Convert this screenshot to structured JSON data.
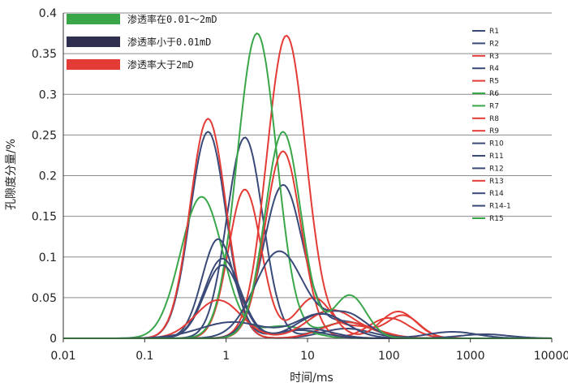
{
  "chart_data": {
    "type": "line",
    "title": "",
    "xlabel": "时间/ms",
    "ylabel": "孔隙度分量/%",
    "xscale": "log",
    "xlim": [
      0.01,
      10000
    ],
    "ylim": [
      0,
      0.4
    ],
    "grid": "horizontal",
    "x_ticks": [
      "0.01",
      "0.1",
      "1",
      "10",
      "100",
      "1000",
      "10000"
    ],
    "y_ticks": [
      "0",
      "0.05",
      "0.1",
      "0.15",
      "0.2",
      "0.25",
      "0.3",
      "0.35",
      "0.4"
    ],
    "group_legend_placement": "top-left",
    "series_legend_placement": "right",
    "groups": [
      {
        "label": "渗透率在0.01～2mD",
        "color": "#3aa64a"
      },
      {
        "label": "渗透率小于0.01mD",
        "color": "#2e2e4e"
      },
      {
        "label": "渗透率大于2mD",
        "color": "#e33b35"
      }
    ],
    "series": [
      {
        "name": "R1",
        "color": "#3a4a78",
        "peaks": [
          {
            "x": 0.6,
            "y": 0.254,
            "w": 0.22
          },
          {
            "x": 30,
            "y": 0.012,
            "w": 0.3
          }
        ]
      },
      {
        "name": "R2",
        "color": "#3a4a78",
        "peaks": [
          {
            "x": 1.7,
            "y": 0.247,
            "w": 0.22
          },
          {
            "x": 30,
            "y": 0.02,
            "w": 0.3
          }
        ]
      },
      {
        "name": "R3",
        "color": "#e33b35",
        "peaks": [
          {
            "x": 5.5,
            "y": 0.372,
            "w": 0.24
          },
          {
            "x": 40,
            "y": 0.015,
            "w": 0.3
          }
        ]
      },
      {
        "name": "R4",
        "color": "#3a4a78",
        "peaks": [
          {
            "x": 5.0,
            "y": 0.188,
            "w": 0.24
          },
          {
            "x": 30,
            "y": 0.02,
            "w": 0.3
          }
        ]
      },
      {
        "name": "R5",
        "color": "#e33b35",
        "peaks": [
          {
            "x": 1.7,
            "y": 0.183,
            "w": 0.2
          },
          {
            "x": 12,
            "y": 0.05,
            "w": 0.22
          },
          {
            "x": 130,
            "y": 0.033,
            "w": 0.22
          }
        ]
      },
      {
        "name": "R6",
        "color": "#3aa64a",
        "peaks": [
          {
            "x": 0.5,
            "y": 0.174,
            "w": 0.26
          },
          {
            "x": 5,
            "y": 0.015,
            "w": 0.3
          }
        ]
      },
      {
        "name": "R7",
        "color": "#3aa64a",
        "peaks": [
          {
            "x": 2.4,
            "y": 0.375,
            "w": 0.24
          },
          {
            "x": 30,
            "y": 0.02,
            "w": 0.3
          }
        ]
      },
      {
        "name": "R8",
        "color": "#e33b35",
        "peaks": [
          {
            "x": 0.6,
            "y": 0.27,
            "w": 0.22
          },
          {
            "x": 30,
            "y": 0.02,
            "w": 0.3
          }
        ]
      },
      {
        "name": "R9",
        "color": "#e33b35",
        "peaks": [
          {
            "x": 5.0,
            "y": 0.23,
            "w": 0.22
          },
          {
            "x": 100,
            "y": 0.025,
            "w": 0.25
          }
        ]
      },
      {
        "name": "R10",
        "color": "#3a4a78",
        "peaks": [
          {
            "x": 0.8,
            "y": 0.122,
            "w": 0.2
          },
          {
            "x": 8,
            "y": 0.01,
            "w": 0.3
          }
        ]
      },
      {
        "name": "R11",
        "color": "#3a4a78",
        "peaks": [
          {
            "x": 0.9,
            "y": 0.098,
            "w": 0.22
          },
          {
            "x": 10,
            "y": 0.012,
            "w": 0.3
          }
        ]
      },
      {
        "name": "R12",
        "color": "#3a4a78",
        "peaks": [
          {
            "x": 0.9,
            "y": 0.09,
            "w": 0.22
          },
          {
            "x": 15,
            "y": 0.03,
            "w": 0.3
          }
        ]
      },
      {
        "name": "R13",
        "color": "#e33b35",
        "peaks": [
          {
            "x": 0.8,
            "y": 0.047,
            "w": 0.28
          },
          {
            "x": 20,
            "y": 0.035,
            "w": 0.3
          },
          {
            "x": 150,
            "y": 0.028,
            "w": 0.2
          }
        ]
      },
      {
        "name": "R14",
        "color": "#3a4a78",
        "peaks": [
          {
            "x": 4.5,
            "y": 0.107,
            "w": 0.3
          },
          {
            "x": 30,
            "y": 0.03,
            "w": 0.25
          },
          {
            "x": 600,
            "y": 0.008,
            "w": 0.3
          }
        ]
      },
      {
        "name": "R14-1",
        "color": "#3a4a78",
        "peaks": [
          {
            "x": 1.2,
            "y": 0.02,
            "w": 0.4
          },
          {
            "x": 15,
            "y": 0.03,
            "w": 0.3
          },
          {
            "x": 1500,
            "y": 0.005,
            "w": 0.3
          }
        ]
      },
      {
        "name": "R15",
        "color": "#3aa64a",
        "peaks": [
          {
            "x": 5.0,
            "y": 0.254,
            "w": 0.22
          },
          {
            "x": 33,
            "y": 0.053,
            "w": 0.2
          }
        ]
      }
    ]
  }
}
